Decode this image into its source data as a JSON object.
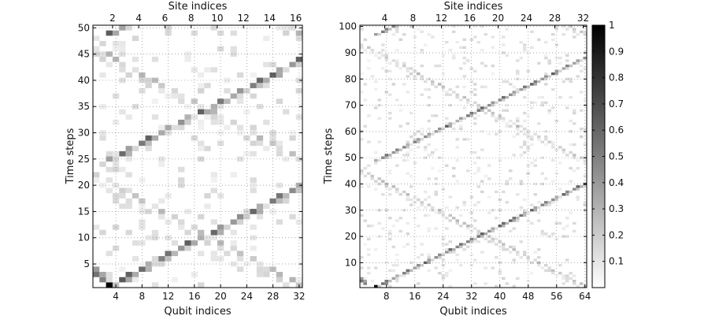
{
  "chart_data": [
    {
      "type": "heatmap",
      "xlabel": "Qubit indices",
      "x2label": "Site indices",
      "ylabel": "Time steps",
      "xticks": [
        "4",
        "8",
        "12",
        "16",
        "20",
        "24",
        "28",
        "32"
      ],
      "x2ticks": [
        "2",
        "4",
        "6",
        "8",
        "10",
        "12",
        "14",
        "16"
      ],
      "yticks": [
        "5",
        "10",
        "15",
        "20",
        "25",
        "30",
        "35",
        "40",
        "45",
        "50"
      ],
      "xlim": [
        0.5,
        32.5
      ],
      "ylim": [
        0.5,
        50.5
      ],
      "grid": true,
      "colormap": "white-to-black",
      "peak_cell": {
        "qubit": 3,
        "step": 1,
        "value": 1.0
      }
    },
    {
      "type": "heatmap",
      "xlabel": "Qubit indices",
      "x2label": "Site indices",
      "ylabel": "Time steps",
      "xticks": [
        "8",
        "16",
        "24",
        "32",
        "40",
        "48",
        "56",
        "64"
      ],
      "x2ticks": [
        "4",
        "8",
        "12",
        "16",
        "20",
        "24",
        "28",
        "32"
      ],
      "yticks": [
        "10",
        "20",
        "30",
        "40",
        "50",
        "60",
        "70",
        "80",
        "90",
        "100"
      ],
      "xlim": [
        0.5,
        64.5
      ],
      "ylim": [
        0.5,
        100.5
      ],
      "grid": true,
      "colormap": "white-to-black",
      "peak_cell": {
        "qubit": 5,
        "step": 1,
        "value": 1.0
      }
    }
  ],
  "colorbar": {
    "ticks": [
      "0.1",
      "0.2",
      "0.3",
      "0.4",
      "0.5",
      "0.6",
      "0.7",
      "0.8",
      "0.9",
      "1"
    ],
    "range": [
      0,
      1
    ],
    "colors": {
      "low": "#ffffff",
      "high": "#000000"
    }
  }
}
